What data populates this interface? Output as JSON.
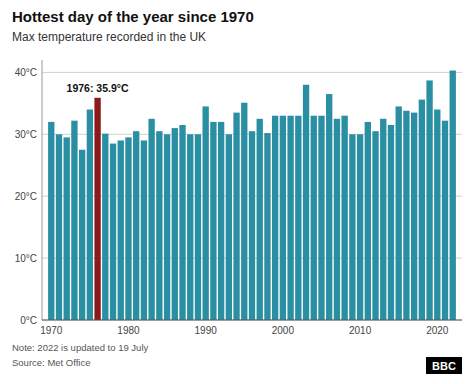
{
  "chart_data": {
    "type": "bar",
    "title": "Hottest day of the year since 1970",
    "subtitle": "Max temperature recorded in the UK",
    "annotation": "1976: 35.9°C",
    "note": "Note: 2022 is updated to 19 July",
    "source": "Source: Met Office",
    "logo": "BBC",
    "x": [
      1970,
      1971,
      1972,
      1973,
      1974,
      1975,
      1976,
      1977,
      1978,
      1979,
      1980,
      1981,
      1982,
      1983,
      1984,
      1985,
      1986,
      1987,
      1988,
      1989,
      1990,
      1991,
      1992,
      1993,
      1994,
      1995,
      1996,
      1997,
      1998,
      1999,
      2000,
      2001,
      2002,
      2003,
      2004,
      2005,
      2006,
      2007,
      2008,
      2009,
      2010,
      2011,
      2012,
      2013,
      2014,
      2015,
      2016,
      2017,
      2018,
      2019,
      2020,
      2021,
      2022
    ],
    "values": [
      32.0,
      30.0,
      29.5,
      32.2,
      27.5,
      34.0,
      35.9,
      30.1,
      28.5,
      29.0,
      29.5,
      30.5,
      29.0,
      32.5,
      30.5,
      30.0,
      31.0,
      31.5,
      30.0,
      30.0,
      34.5,
      32.0,
      32.0,
      30.0,
      33.5,
      35.1,
      30.5,
      32.5,
      30.2,
      33.0,
      33.0,
      33.0,
      33.0,
      38.0,
      33.0,
      33.0,
      36.5,
      32.5,
      33.0,
      30.0,
      30.0,
      32.0,
      30.5,
      32.5,
      31.5,
      34.5,
      33.8,
      33.5,
      35.6,
      38.7,
      34.0,
      32.2,
      40.3
    ],
    "colors": [
      "#2a8fa3",
      "#2a8fa3",
      "#2a8fa3",
      "#2a8fa3",
      "#2a8fa3",
      "#2a8fa3",
      "#8b1a1a",
      "#2a8fa3",
      "#2a8fa3",
      "#2a8fa3",
      "#2a8fa3",
      "#2a8fa3",
      "#2a8fa3",
      "#2a8fa3",
      "#2a8fa3",
      "#2a8fa3",
      "#2a8fa3",
      "#2a8fa3",
      "#2a8fa3",
      "#2a8fa3",
      "#2a8fa3",
      "#2a8fa3",
      "#2a8fa3",
      "#2a8fa3",
      "#2a8fa3",
      "#2a8fa3",
      "#2a8fa3",
      "#2a8fa3",
      "#2a8fa3",
      "#2a8fa3",
      "#2a8fa3",
      "#2a8fa3",
      "#2a8fa3",
      "#2a8fa3",
      "#2a8fa3",
      "#2a8fa3",
      "#2a8fa3",
      "#2a8fa3",
      "#2a8fa3",
      "#2a8fa3",
      "#2a8fa3",
      "#2a8fa3",
      "#2a8fa3",
      "#2a8fa3",
      "#2a8fa3",
      "#2a8fa3",
      "#2a8fa3",
      "#2a8fa3",
      "#2a8fa3",
      "#2a8fa3",
      "#2a8fa3",
      "#2a8fa3",
      "#2a8fa3"
    ],
    "xlim": [
      1968.8,
      2023.2
    ],
    "xticks": [
      1970,
      1980,
      1990,
      2000,
      2010,
      2020
    ],
    "ylim": [
      0,
      42
    ],
    "yticks": [
      {
        "value": 0,
        "label": "0°C"
      },
      {
        "value": 10,
        "label": "10°C"
      },
      {
        "value": 20,
        "label": "20°C"
      },
      {
        "value": 30,
        "label": "30°C"
      },
      {
        "value": 40,
        "label": "40°C"
      }
    ],
    "grid": true
  }
}
